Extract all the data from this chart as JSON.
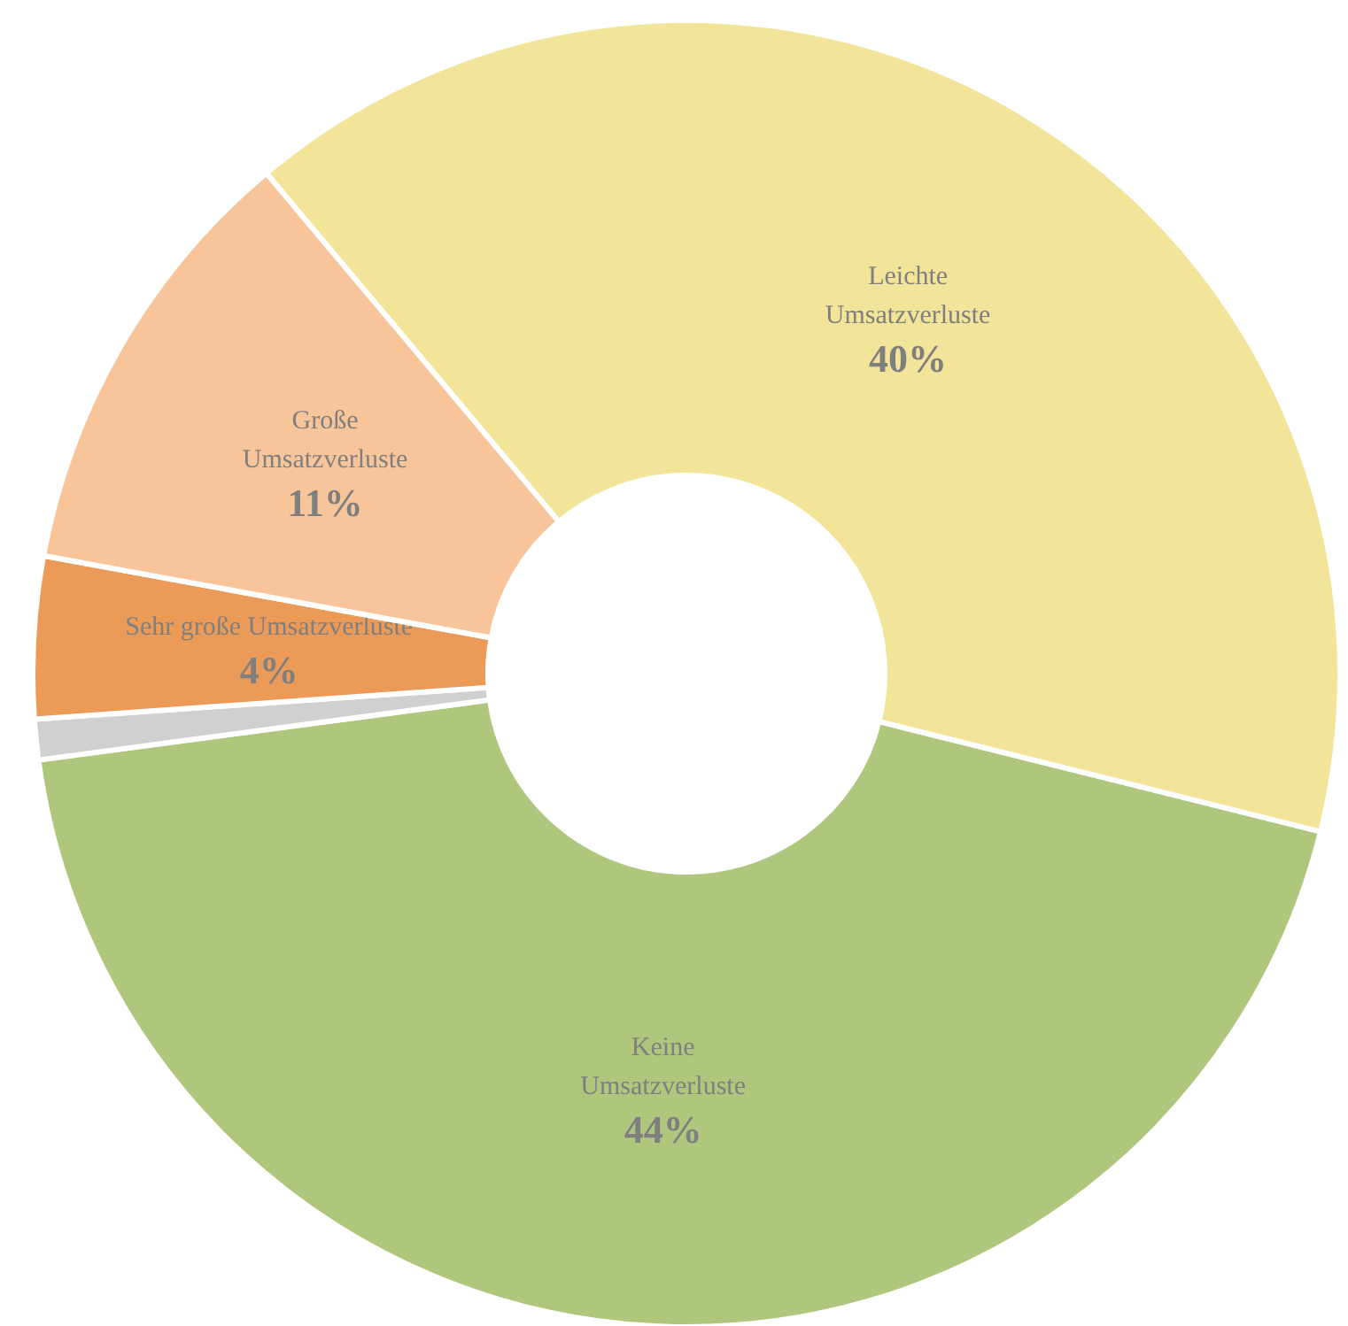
{
  "chart_data": {
    "type": "donut",
    "categories": [
      "Leichte Umsatzverluste",
      "Keine Umsatzverluste",
      null,
      "Sehr große Umsatzverluste",
      "Große Umsatzverluste"
    ],
    "values": [
      40,
      44,
      1,
      4,
      11
    ],
    "value_labels": [
      "40%",
      "44%",
      null,
      "4%",
      "11%"
    ],
    "colors": [
      "#f2e599",
      "#aec77d",
      "#d0d0d0",
      "#ec9a58",
      "#f8c59a"
    ]
  }
}
